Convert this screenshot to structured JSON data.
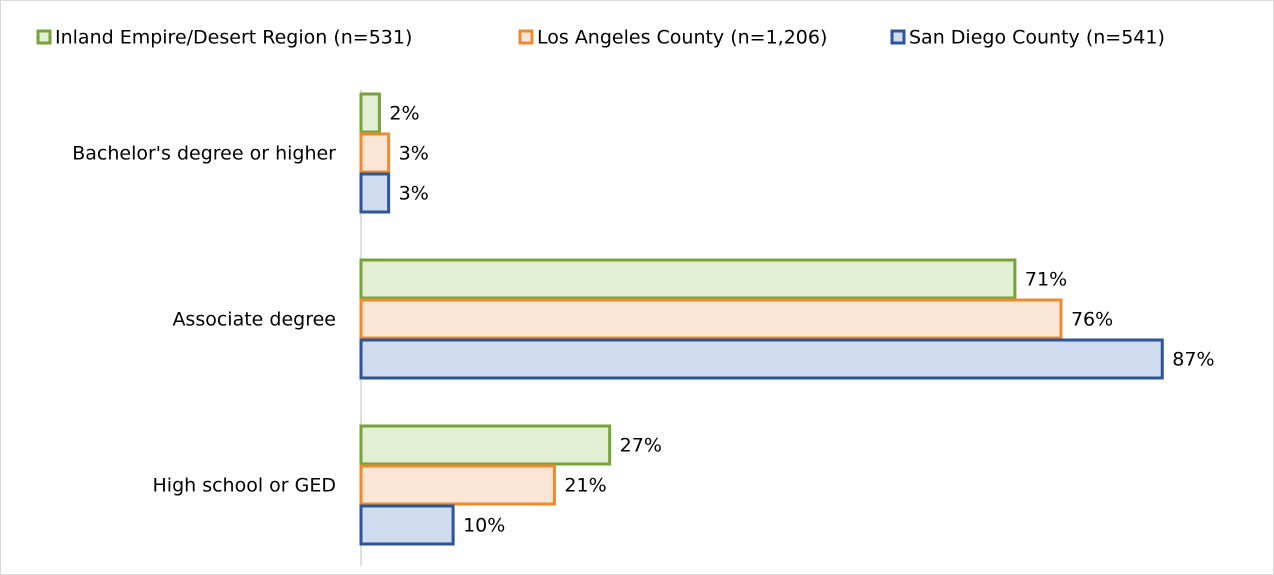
{
  "chart_data": {
    "type": "hbar",
    "categories": [
      "Bachelor's degree or higher",
      "Associate degree",
      "High school or GED"
    ],
    "series": [
      {
        "name": "Inland Empire/Desert Region (n=531)",
        "color": "#76a33a",
        "fill": "#e2efd3",
        "values": [
          2,
          71,
          27
        ],
        "value_labels": [
          "2%",
          "71%",
          "27%"
        ]
      },
      {
        "name": "Los Angeles County (n=1,206)",
        "color": "#ee8a2e",
        "fill": "#fbe5d5",
        "values": [
          3,
          76,
          21
        ],
        "value_labels": [
          "3%",
          "76%",
          "21%"
        ]
      },
      {
        "name": "San Diego County (n=541)",
        "color": "#2e5597",
        "fill": "#cfdbee",
        "values": [
          3,
          87,
          10
        ],
        "value_labels": [
          "3%",
          "87%",
          "10%"
        ]
      }
    ],
    "xlim": [
      0,
      100
    ],
    "legend": "top"
  }
}
